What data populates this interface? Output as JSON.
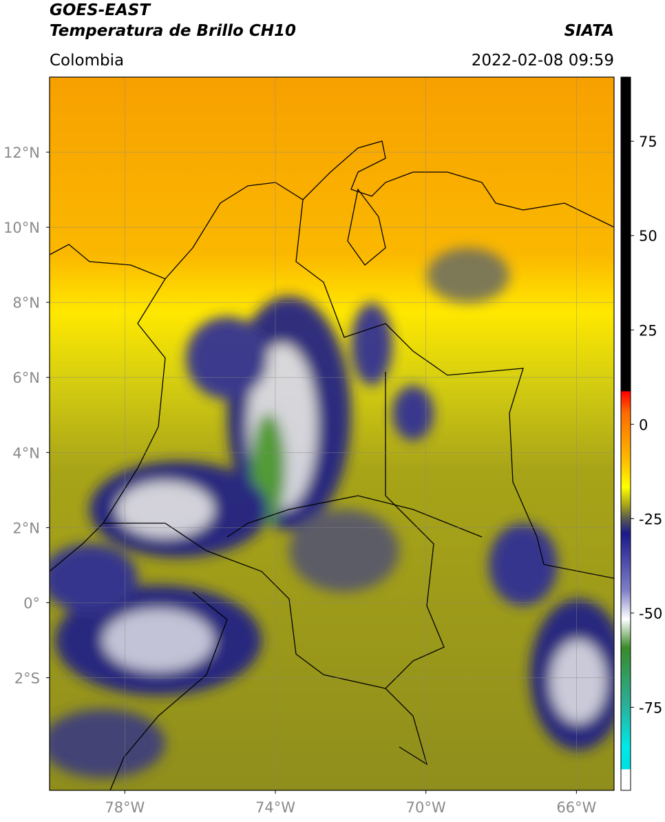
{
  "header": {
    "title": "GOES-EAST",
    "subtitle": "Temperatura de Brillo CH10",
    "source": "SIATA",
    "region": "Colombia",
    "datetime": "2022-02-08 09:59"
  },
  "map": {
    "xlim": [
      -80,
      -65
    ],
    "ylim": [
      -5,
      14
    ],
    "xticks": [
      {
        "value": -78,
        "label": "78°W"
      },
      {
        "value": -74,
        "label": "74°W"
      },
      {
        "value": -70,
        "label": "70°W"
      },
      {
        "value": -66,
        "label": "66°W"
      }
    ],
    "yticks": [
      {
        "value": 12,
        "label": "12°N"
      },
      {
        "value": 10,
        "label": "10°N"
      },
      {
        "value": 8,
        "label": "8°N"
      },
      {
        "value": 6,
        "label": "6°N"
      },
      {
        "value": 4,
        "label": "4°N"
      },
      {
        "value": 2,
        "label": "2°N"
      },
      {
        "value": 0,
        "label": "0°"
      },
      {
        "value": -2,
        "label": "2°S"
      }
    ],
    "colorbar": {
      "lim": [
        -97,
        92
      ],
      "ticks": [
        75,
        50,
        25,
        0,
        -25,
        -50,
        -75
      ]
    }
  }
}
